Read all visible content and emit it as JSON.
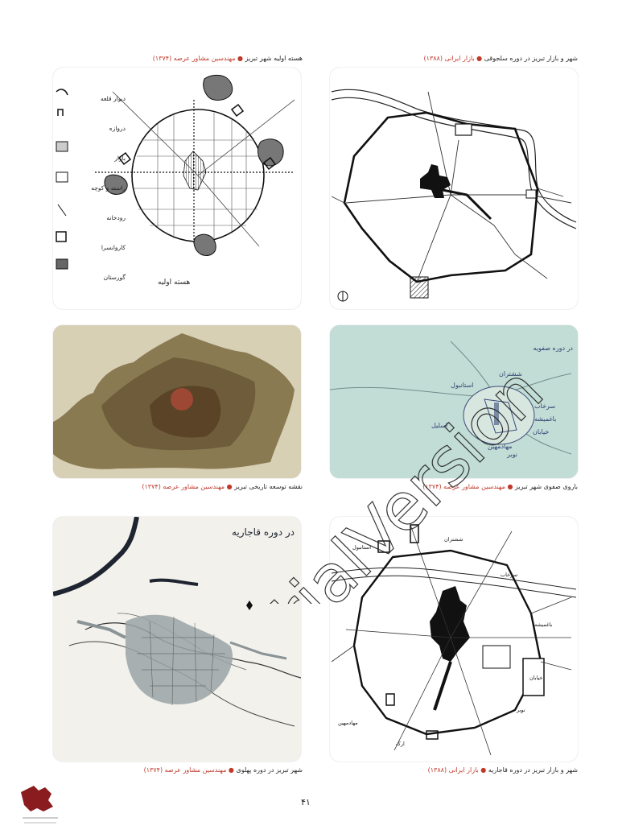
{
  "panels": {
    "seljuk": {
      "title": "شهر و بازار تبریز در دوره سلجوقی",
      "source": "بازار ایرانی (۱۳۸۸)"
    },
    "nucleus": {
      "title": "هسته اولیه شهر تبریز",
      "source": "مهندسین مشاور عرصه (۱۳۷۴)",
      "legend": [
        "دیوار قلعه",
        "دروازه",
        "بازار",
        "راسته و کوچه",
        "رودخانه",
        "کاروانسرا",
        "گورستان"
      ],
      "map_caption": "هسته اولیه"
    },
    "safavid": {
      "title": "باروی صفوی شهر تبریز",
      "source": "مهندسین مشاور عرصه (۱۳۷۴)",
      "map_title": "در دوره صفویه",
      "labels": [
        "ششتران",
        "استانبول",
        "سرخاب",
        "باغمیشه",
        "خیابان",
        "نوبر",
        "مهادمهین",
        "اسلیل"
      ]
    },
    "expansion": {
      "title": "نقشه توسعه تاریخی تبریز",
      "source": "مهندسین مشاور عرصه (۱۳۷۴)"
    },
    "qajar": {
      "title": "شهر و بازار تبریز در دوره قاجاریه",
      "source": "بازار ایرانی (۱۳۸۸)",
      "labels": [
        "ششتران",
        "استانبول",
        "سرخاب",
        "باغمیشه",
        "خیابان",
        "نوبر",
        "مهادمهین",
        "ارک"
      ]
    },
    "pahlavi": {
      "title": "شهر تبریز در دوره پهلوی",
      "source": "مهندسین مشاور عرصه (۱۳۷۴)",
      "map_title": "در دوره قاجاریه"
    }
  },
  "page_number": "۴۱",
  "watermark": "TrialVersion",
  "colors": {
    "caption_red": "#c0392b",
    "ink": "#231f20",
    "safavid_bg": "#bcd8d2",
    "expansion_bg": "#7d6b45",
    "pahlavi_region": "#9aa3a6"
  }
}
